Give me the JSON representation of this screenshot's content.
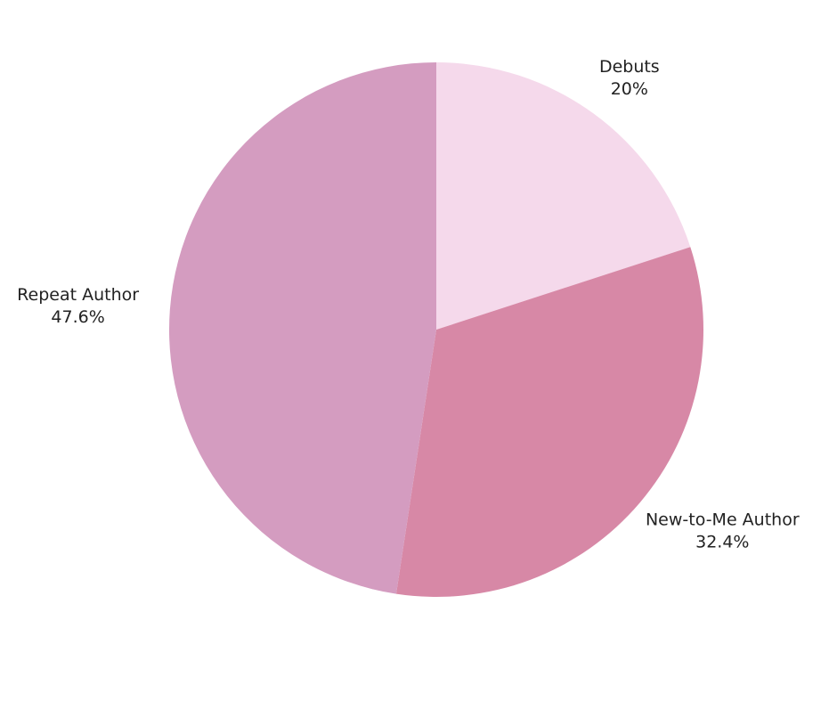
{
  "chart_data": {
    "type": "pie",
    "categories": [
      "Debuts",
      "New-to-Me Author",
      "Repeat Author"
    ],
    "values": [
      20,
      32.4,
      47.6
    ],
    "value_labels": [
      "20%",
      "32.4%",
      "47.6%"
    ],
    "colors": [
      "#f5d9eb",
      "#d788a6",
      "#d49cc0"
    ]
  }
}
